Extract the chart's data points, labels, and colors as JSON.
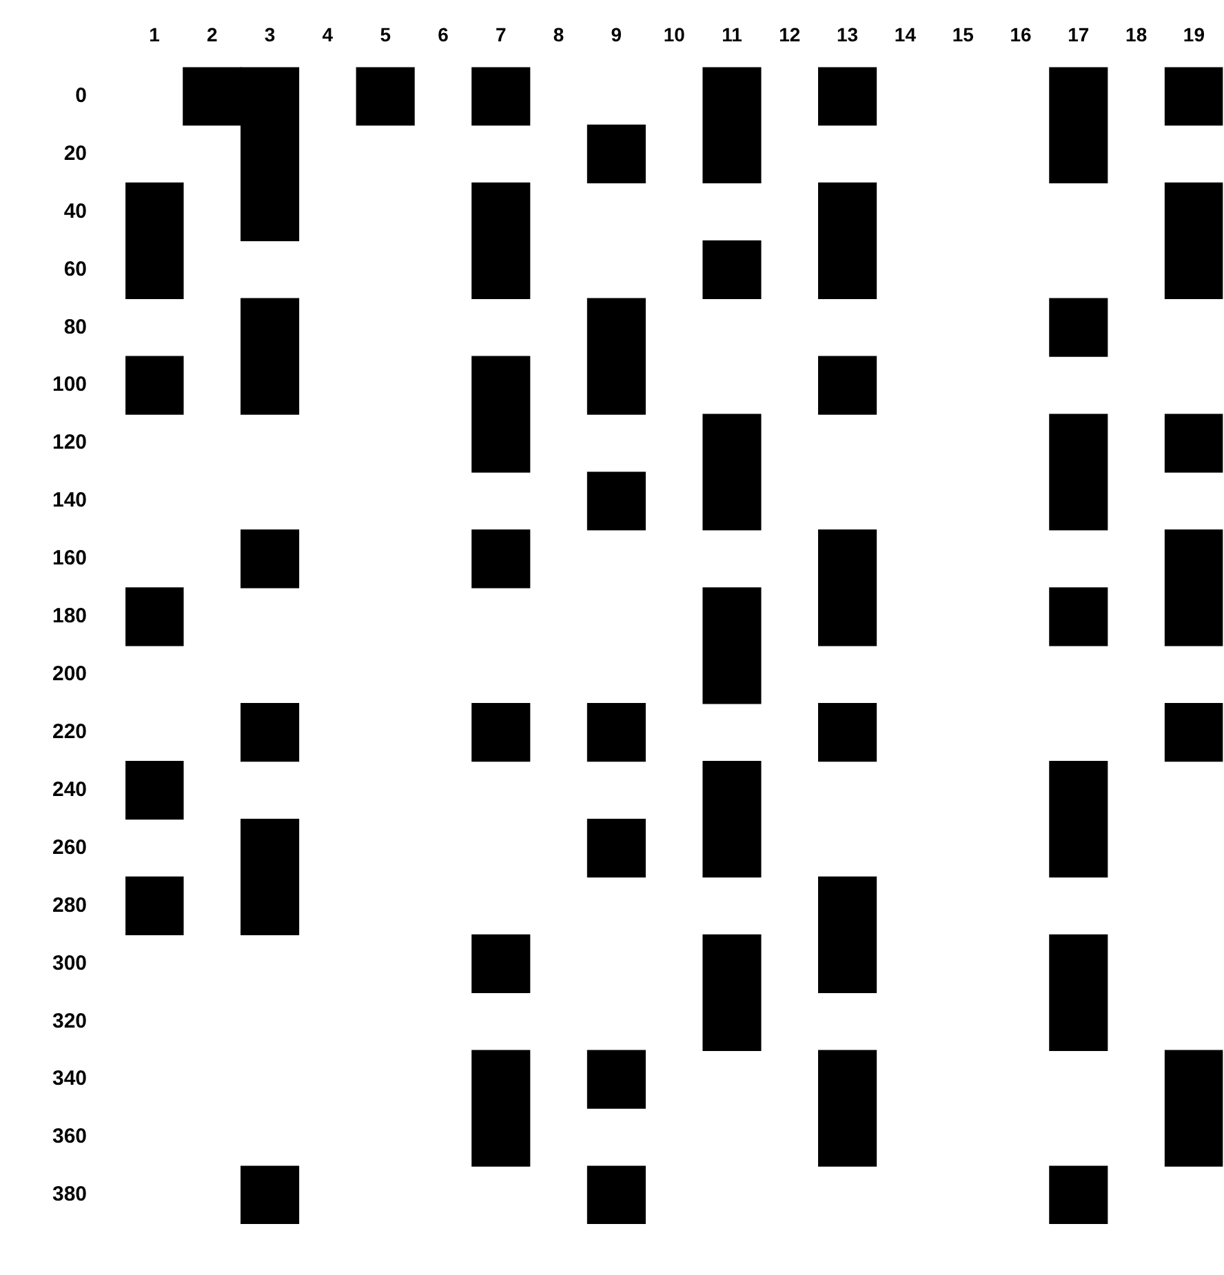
{
  "chart_data": {
    "type": "bar",
    "categories": [
      "1",
      "2",
      "3",
      "4",
      "5",
      "6",
      "7",
      "8",
      "9",
      "10",
      "11",
      "12",
      "13",
      "14",
      "15",
      "16",
      "17",
      "18",
      "19"
    ],
    "ylim": [
      390,
      -10
    ],
    "yticks": [
      0,
      20,
      40,
      60,
      80,
      100,
      120,
      140,
      160,
      180,
      200,
      220,
      240,
      260,
      280,
      300,
      320,
      340,
      360,
      380
    ],
    "grid": false,
    "legend": false,
    "series": [
      {
        "color": "#000000",
        "base": [
          30,
          -10,
          -10,
          null,
          -10,
          null,
          -10,
          null,
          10,
          null,
          -10,
          null,
          -10,
          null,
          null,
          null,
          -10,
          null,
          -10
        ],
        "values": [
          40,
          20,
          60,
          null,
          20,
          null,
          20,
          null,
          20,
          null,
          40,
          null,
          20,
          null,
          null,
          null,
          40,
          null,
          20
        ]
      },
      {
        "color": "#000000",
        "base": [
          90,
          null,
          70,
          null,
          null,
          null,
          30,
          null,
          70,
          null,
          50,
          null,
          30,
          null,
          null,
          null,
          70,
          null,
          30
        ],
        "values": [
          20,
          null,
          40,
          null,
          null,
          null,
          40,
          null,
          40,
          null,
          20,
          null,
          40,
          null,
          null,
          null,
          20,
          null,
          40
        ]
      },
      {
        "color": "#000000",
        "base": [
          170,
          null,
          150,
          null,
          null,
          null,
          90,
          null,
          130,
          null,
          110,
          null,
          90,
          null,
          null,
          null,
          110,
          null,
          110
        ],
        "values": [
          20,
          null,
          20,
          null,
          null,
          null,
          40,
          null,
          20,
          null,
          40,
          null,
          20,
          null,
          null,
          null,
          40,
          null,
          20
        ]
      },
      {
        "color": "#000000",
        "base": [
          230,
          null,
          210,
          null,
          null,
          null,
          150,
          null,
          210,
          null,
          170,
          null,
          150,
          null,
          null,
          null,
          170,
          null,
          150
        ],
        "values": [
          20,
          null,
          20,
          null,
          null,
          null,
          20,
          null,
          20,
          null,
          40,
          null,
          40,
          null,
          null,
          null,
          20,
          null,
          40
        ]
      },
      {
        "color": "#000000",
        "base": [
          270,
          null,
          250,
          null,
          null,
          null,
          210,
          null,
          250,
          null,
          230,
          null,
          210,
          null,
          null,
          null,
          230,
          null,
          210
        ],
        "values": [
          20,
          null,
          40,
          null,
          null,
          null,
          20,
          null,
          20,
          null,
          40,
          null,
          20,
          null,
          null,
          null,
          40,
          null,
          20
        ]
      },
      {
        "color": "#000000",
        "base": [
          null,
          null,
          370,
          null,
          null,
          null,
          290,
          null,
          330,
          null,
          290,
          null,
          270,
          null,
          null,
          null,
          290,
          null,
          330
        ],
        "values": [
          null,
          null,
          20,
          null,
          null,
          null,
          20,
          null,
          20,
          null,
          40,
          null,
          40,
          null,
          null,
          null,
          40,
          null,
          40
        ]
      },
      {
        "color": "#000000",
        "base": [
          null,
          null,
          null,
          null,
          null,
          null,
          330,
          null,
          370,
          null,
          null,
          null,
          330,
          null,
          null,
          null,
          370,
          null,
          null
        ],
        "values": [
          null,
          null,
          null,
          null,
          null,
          null,
          40,
          null,
          20,
          null,
          null,
          null,
          40,
          null,
          null,
          null,
          20,
          null,
          null
        ]
      }
    ]
  }
}
